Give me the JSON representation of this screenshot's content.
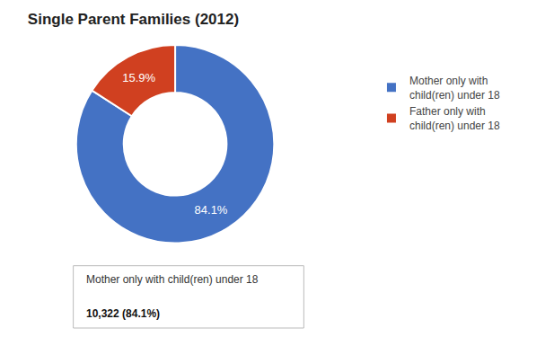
{
  "chart_data": {
    "type": "donut",
    "title": "Single Parent Families (2012)",
    "categories": [
      "Mother only with\nchild(ren) under 18",
      "Father only with\nchild(ren) under 18"
    ],
    "values": [
      84.1,
      15.9
    ],
    "value_labels": [
      "84.1%",
      "15.9%"
    ],
    "colors": [
      "#4472C4",
      "#D04020"
    ],
    "data_labels": true,
    "legend": "right",
    "annotations": [
      "Mother only with child(ren) under 18",
      "10,322 (84.1%)"
    ]
  }
}
